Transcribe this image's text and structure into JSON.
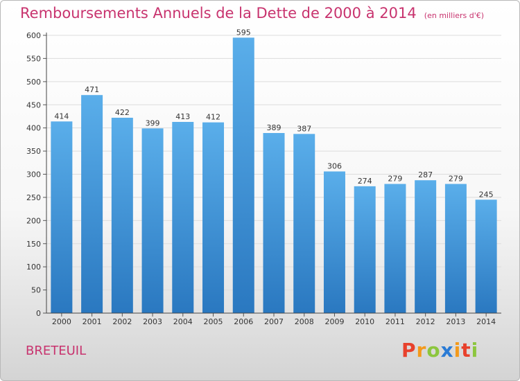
{
  "title": "Remboursements Annuels de la Dette de 2000 à 2014",
  "unit": "(en milliers d'€)",
  "commune": "BRETEUIL",
  "logo": {
    "letters": [
      "P",
      "r",
      "o",
      "x",
      "i",
      "t",
      "i"
    ],
    "colors": [
      "#e8412c",
      "#f39a1c",
      "#8cc63e",
      "#2a7bd5",
      "#f39a1c",
      "#e8412c",
      "#8cc63e"
    ]
  },
  "colors": {
    "title": "#c8336e",
    "bar_top": "#5aaeea",
    "bar_bottom": "#2a78c0"
  },
  "chart_data": {
    "type": "bar",
    "title": "Remboursements Annuels de la Dette de 2000 à 2014",
    "categories": [
      "2000",
      "2001",
      "2002",
      "2003",
      "2004",
      "2005",
      "2006",
      "2007",
      "2008",
      "2009",
      "2010",
      "2011",
      "2012",
      "2013",
      "2014"
    ],
    "values": [
      414,
      471,
      422,
      399,
      413,
      412,
      595,
      389,
      387,
      306,
      274,
      279,
      287,
      279,
      245
    ],
    "xlabel": "",
    "ylabel": "",
    "ylim": [
      0,
      600
    ],
    "yticks": [
      0,
      50,
      100,
      150,
      200,
      250,
      300,
      350,
      400,
      450,
      500,
      550,
      600
    ],
    "grid": true,
    "legend": "none"
  }
}
